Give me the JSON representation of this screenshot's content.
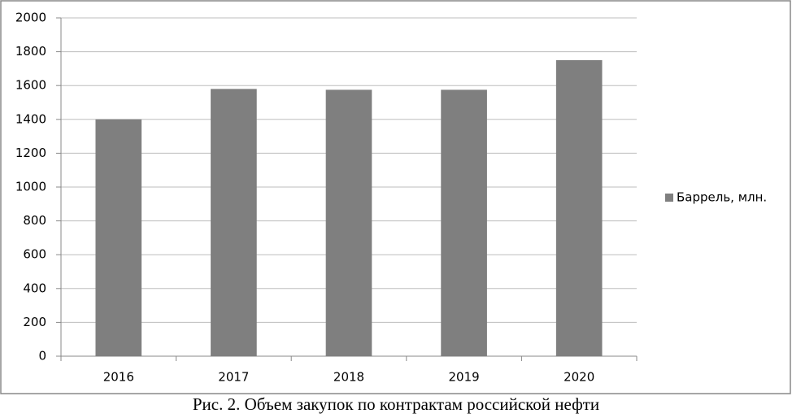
{
  "chart_data": {
    "type": "bar",
    "caption": "Рис. 2. Объем закупок по контрактам российской нефти",
    "categories": [
      "2016",
      "2017",
      "2018",
      "2019",
      "2020"
    ],
    "series": [
      {
        "name": "Баррель, млн.",
        "color": "#7f7f7f",
        "values": [
          1400,
          1580,
          1575,
          1575,
          1750
        ]
      }
    ],
    "ylim": [
      0,
      2000
    ],
    "yticks": [
      0,
      200,
      400,
      600,
      800,
      1000,
      1200,
      1400,
      1600,
      1800,
      2000
    ],
    "grid": true,
    "legend": "right"
  }
}
